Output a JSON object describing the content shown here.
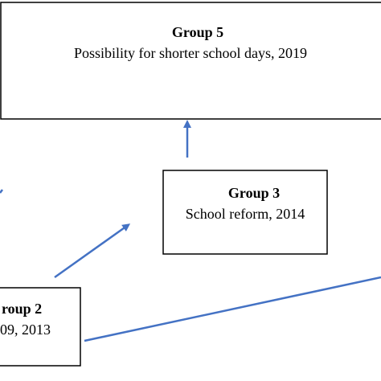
{
  "nodes": [
    {
      "title": "Group 5",
      "label": "Possibility for shorter school days, 2019"
    },
    {
      "title": "Group 3",
      "label": "School reform, 2014"
    },
    {
      "title": "roup 2",
      "label": "09, 2013"
    }
  ]
}
